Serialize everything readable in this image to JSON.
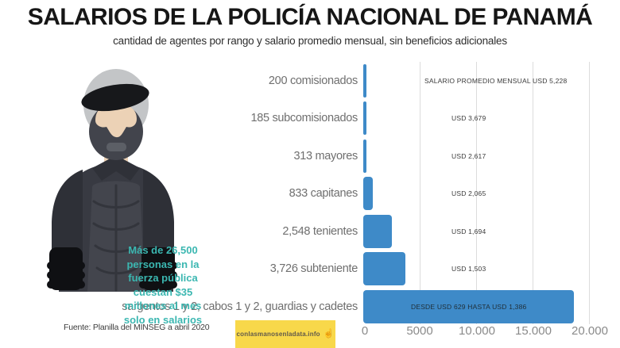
{
  "chart_data": {
    "type": "bar",
    "orientation": "horizontal",
    "title": "SALARIOS DE LA POLICÍA NACIONAL DE PANAMÁ",
    "subtitle": "cantidad de agentes por rango y salario promedio mensual, sin beneficios adicionales",
    "categories": [
      "200 comisionados",
      "185 subcomisionados",
      "313 mayores",
      "833 capitanes",
      "2,548 tenientes",
      "3,726 subteniente",
      "sargentos 1 y 2, cabos 1 y 2, guardias y cadetes"
    ],
    "values": [
      200,
      185,
      313,
      833,
      2548,
      3726,
      18695
    ],
    "bar_labels": [
      "SALARIO PROMEDIO MENSUAL USD 5,228",
      "USD 3,679",
      "USD 2,617",
      "USD 2,065",
      "USD 1,694",
      "USD 1,503",
      "DESDE USD 629 HASTA USD 1,386"
    ],
    "salaries_usd": [
      5228,
      3679,
      2617,
      2065,
      1694,
      1503,
      null
    ],
    "salary_range_last_rank_usd": [
      629,
      1386
    ],
    "xlim": [
      0,
      20000
    ],
    "x_ticks": [
      "0",
      "5000",
      "10.000",
      "15.000",
      "20.000"
    ],
    "x_tick_values": [
      0,
      5000,
      10000,
      15000,
      20000
    ],
    "grid": true,
    "bar_color": "#3e8ac8"
  },
  "annotation": {
    "text": "Más de 26,500 personas en la fuerza pública cuestan $35 millones al mes solo en salarios",
    "color": "#3bb7b1"
  },
  "footer": {
    "source": "Fuente: Planilla del MINSEG a abril 2020",
    "badge_text": "conlasmanosenladata.info"
  },
  "colors": {
    "bar": "#3e8ac8",
    "badge_bg": "#f8d84a",
    "gridline": "#dcdcdc"
  }
}
